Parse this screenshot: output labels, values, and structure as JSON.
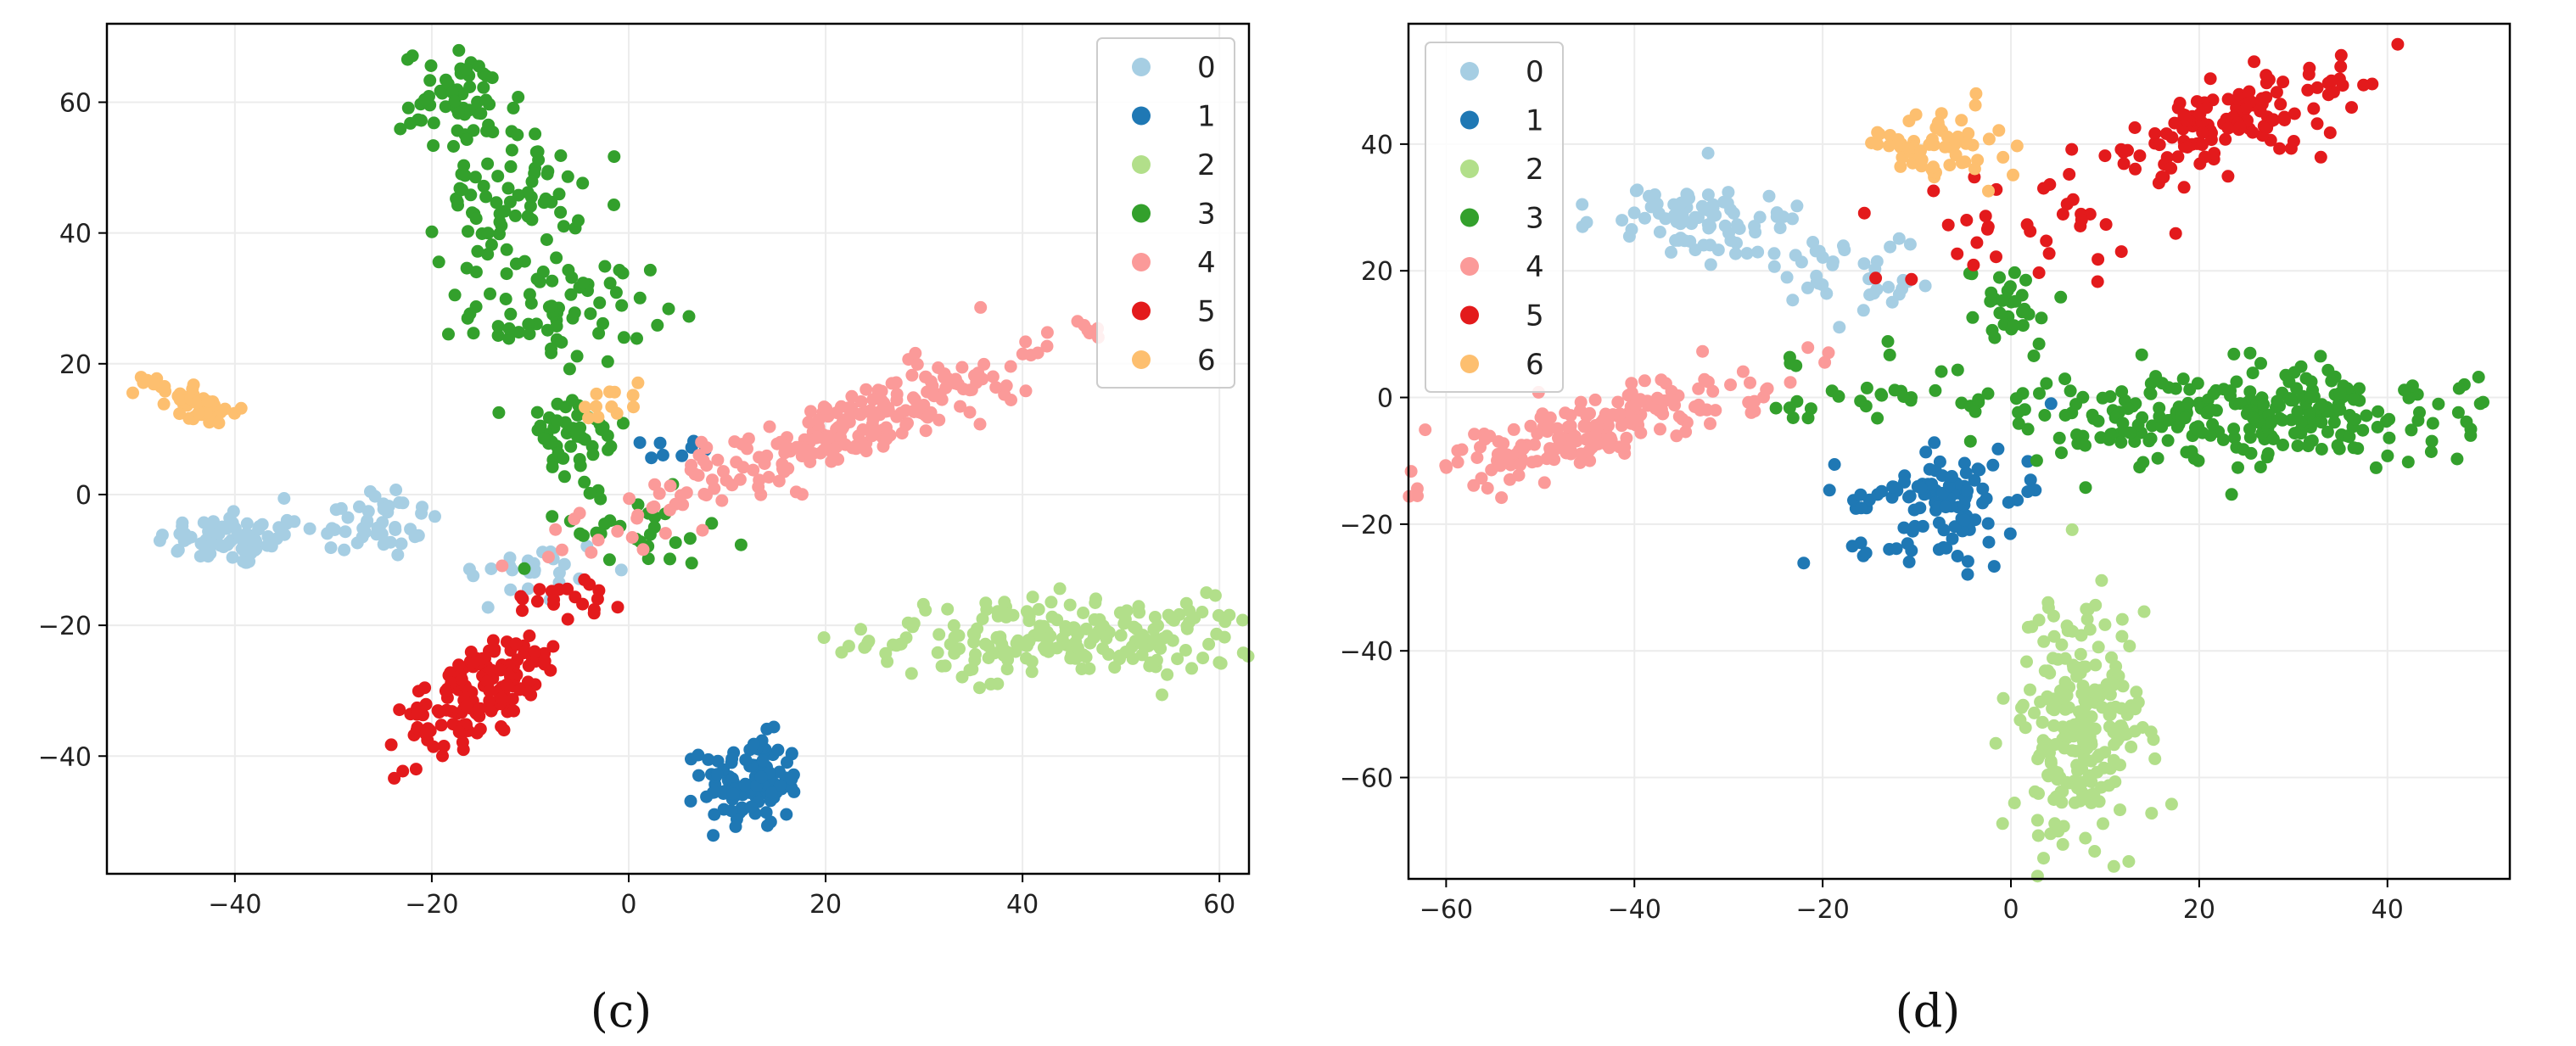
{
  "figure": {
    "colors": [
      "#a6cee3",
      "#1f78b4",
      "#b2df8a",
      "#33a02c",
      "#fb9a99",
      "#e31a1c",
      "#fdbf6f"
    ]
  },
  "chart_data": [
    {
      "type": "scatter",
      "caption": "(c)",
      "title": "",
      "xlabel": "",
      "ylabel": "",
      "xlim": [
        -53,
        63
      ],
      "ylim": [
        -58,
        72
      ],
      "xticks": [
        -40,
        -20,
        0,
        20,
        40,
        60
      ],
      "yticks": [
        -40,
        -20,
        0,
        20,
        40,
        60
      ],
      "xtick_labels": [
        "−40",
        "−20",
        "0",
        "20",
        "40",
        "60"
      ],
      "ytick_labels": [
        "−40",
        "−20",
        "0",
        "20",
        "40",
        "60"
      ],
      "grid": true,
      "legend": {
        "position": "top-right",
        "entries": [
          "0",
          "1",
          "2",
          "3",
          "4",
          "5",
          "6"
        ]
      },
      "clusters": [
        {
          "cls": 0,
          "cx": -40,
          "cy": -7,
          "sx": 4,
          "sy": 2,
          "n": 70
        },
        {
          "cls": 0,
          "cx": -26,
          "cy": -4,
          "sx": 3.5,
          "sy": 3,
          "n": 45
        },
        {
          "cls": 0,
          "cx": -10,
          "cy": -12,
          "sx": 4,
          "sy": 3,
          "n": 25
        },
        {
          "cls": 1,
          "cx": 12.5,
          "cy": -44,
          "sx": 2.5,
          "sy": 3.5,
          "n": 110
        },
        {
          "cls": 1,
          "cx": 3,
          "cy": 7,
          "sx": 2,
          "sy": 1,
          "n": 8
        },
        {
          "cls": 2,
          "cx": 45,
          "cy": -22,
          "sx": 10,
          "sy": 3,
          "n": 220
        },
        {
          "cls": 3,
          "cx": -17,
          "cy": 60,
          "sx": 3,
          "sy": 4,
          "n": 60
        },
        {
          "cls": 3,
          "cx": -12,
          "cy": 45,
          "sx": 3.5,
          "sy": 5,
          "n": 70
        },
        {
          "cls": 3,
          "cx": -7,
          "cy": 28,
          "sx": 4.5,
          "sy": 4,
          "n": 70
        },
        {
          "cls": 3,
          "cx": -6,
          "cy": 8,
          "sx": 3,
          "sy": 4,
          "n": 45
        },
        {
          "cls": 3,
          "cx": 0,
          "cy": -5,
          "sx": 6,
          "sy": 3,
          "n": 30
        },
        {
          "cls": 4,
          "cx": 22,
          "cy": 10,
          "sx": 13,
          "sy": 2.5,
          "slope": 0.62,
          "n": 240
        },
        {
          "cls": 5,
          "cx": -15,
          "cy": -30,
          "sx": 6,
          "sy": 2.5,
          "slope": 1.45,
          "n": 150
        },
        {
          "cls": 5,
          "cx": -6,
          "cy": -15,
          "sx": 3,
          "sy": 2,
          "n": 20
        },
        {
          "cls": 6,
          "cx": -44,
          "cy": 14,
          "sx": 3,
          "sy": 1,
          "slope": -0.7,
          "n": 55
        },
        {
          "cls": 6,
          "cx": -2,
          "cy": 14,
          "sx": 1.5,
          "sy": 2,
          "n": 12
        }
      ]
    },
    {
      "type": "scatter",
      "caption": "(d)",
      "title": "",
      "xlabel": "",
      "ylabel": "",
      "xlim": [
        -64,
        53
      ],
      "ylim": [
        -76,
        59
      ],
      "xticks": [
        -60,
        -40,
        -20,
        0,
        20,
        40
      ],
      "yticks": [
        -60,
        -40,
        -20,
        0,
        20,
        40
      ],
      "xtick_labels": [
        "−60",
        "−40",
        "−20",
        "0",
        "20",
        "40"
      ],
      "ytick_labels": [
        "−60",
        "−40",
        "−20",
        "0",
        "20",
        "40"
      ],
      "grid": true,
      "legend": {
        "position": "top-left",
        "entries": [
          "0",
          "1",
          "2",
          "3",
          "4",
          "5",
          "6"
        ]
      },
      "clusters": [
        {
          "cls": 0,
          "cx": -33,
          "cy": 28,
          "sx": 5,
          "sy": 3,
          "n": 80
        },
        {
          "cls": 0,
          "cx": -18,
          "cy": 20,
          "sx": 4,
          "sy": 3,
          "n": 40
        },
        {
          "cls": 1,
          "cx": -8,
          "cy": -18,
          "sx": 5,
          "sy": 4,
          "slope": 0.8,
          "n": 110
        },
        {
          "cls": 2,
          "cx": 7,
          "cy": -52,
          "sx": 3.5,
          "sy": 10,
          "n": 230
        },
        {
          "cls": 3,
          "cx": 25,
          "cy": -3,
          "sx": 14,
          "sy": 4,
          "n": 260
        },
        {
          "cls": 3,
          "cx": -12,
          "cy": 0,
          "sx": 10,
          "sy": 4,
          "n": 40
        },
        {
          "cls": 3,
          "cx": 0,
          "cy": 15,
          "sx": 2,
          "sy": 3,
          "n": 30
        },
        {
          "cls": 4,
          "cx": -44,
          "cy": -5,
          "sx": 10,
          "sy": 2.5,
          "slope": 0.42,
          "n": 200
        },
        {
          "cls": 5,
          "cx": 24,
          "cy": 44,
          "sx": 7,
          "sy": 3,
          "slope": 0.5,
          "n": 130
        },
        {
          "cls": 5,
          "cx": 0,
          "cy": 27,
          "sx": 6,
          "sy": 4,
          "n": 35
        },
        {
          "cls": 6,
          "cx": -8,
          "cy": 39,
          "sx": 4,
          "sy": 3,
          "slope": -0.6,
          "n": 60
        }
      ]
    }
  ]
}
